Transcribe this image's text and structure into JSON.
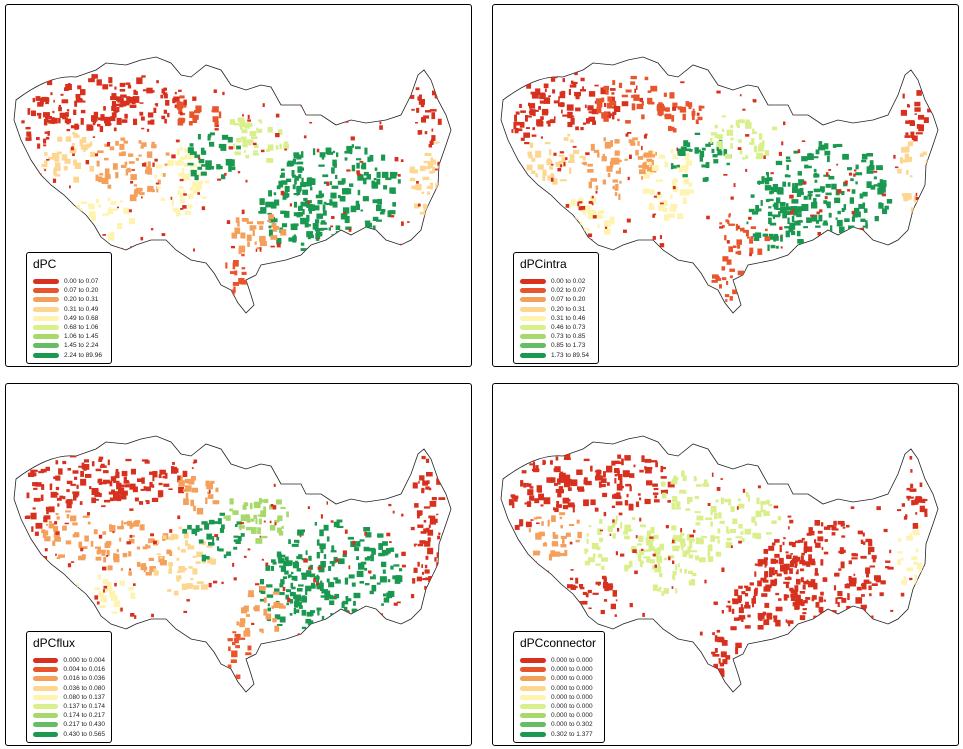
{
  "palette": [
    "#d7301f",
    "#e8552c",
    "#f4a05b",
    "#fdd690",
    "#fff3b0",
    "#d9ef8b",
    "#a6d96a",
    "#66bd63",
    "#1a9850"
  ],
  "panels": [
    {
      "title": "dPC",
      "classes": [
        "0.00 to 0.07",
        "0.07 to 0.20",
        "0.20 to 0.31",
        "0.31 to 0.49",
        "0.49 to 0.68",
        "0.68 to 1.06",
        "1.06 to 1.45",
        "1.45 to 2.24",
        "2.24 to 89.96"
      ]
    },
    {
      "title": "dPCintra",
      "classes": [
        "0.00 to 0.02",
        "0.02 to 0.07",
        "0.07 to 0.20",
        "0.20 to 0.31",
        "0.31 to 0.46",
        "0.46 to 0.73",
        "0.73 to 0.85",
        "0.85 to 1.73",
        "1.73 to 89.54"
      ]
    },
    {
      "title": "dPCflux",
      "classes": [
        "0.000 to 0.004",
        "0.004 to 0.016",
        "0.016 to 0.036",
        "0.036 to 0.080",
        "0.080 to 0.137",
        "0.137 to 0.174",
        "0.174 to 0.217",
        "0.217 to 0.430",
        "0.430 to 0.565"
      ]
    },
    {
      "title": "dPCconnector",
      "classes": [
        "0.000 to 0.000",
        "0.000 to 0.000",
        "0.000 to 0.000",
        "0.000 to 0.000",
        "0.000 to 0.000",
        "0.000 to 0.000",
        "0.000 to 0.000",
        "0.000 to 0.302",
        "0.302 to 1.377"
      ]
    }
  ]
}
